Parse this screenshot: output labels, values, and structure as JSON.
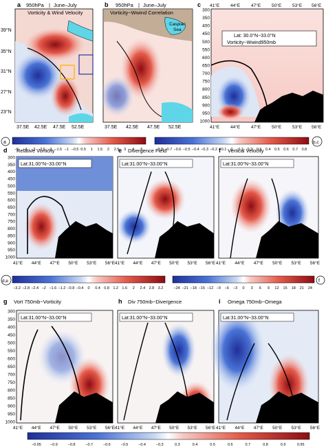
{
  "panels": {
    "a": {
      "letter": "a",
      "title_left": "950hPa",
      "title_sep": "|",
      "title_right": "June–July",
      "subtitle": "Vorticity & Wind Velocity",
      "xticks": [
        "37.5E",
        "42.5E",
        "47.5E",
        "52.5E"
      ],
      "yticks": [
        "39°N",
        "35°N",
        "31°N",
        "27°N",
        "23°N"
      ]
    },
    "b": {
      "letter": "b",
      "title_left": "950hPa",
      "title_sep": "|",
      "title_right": "June–July",
      "subtitle": "Vorticity−Wwind Correlation",
      "xticks": [
        "37.5E",
        "42.5E",
        "47.5E",
        "52.5E"
      ],
      "inset_label_1": "Caspian",
      "inset_label_2": "Sea"
    },
    "c": {
      "letter": "c",
      "box_line1": "Lat: 30.0°N−33.0°N",
      "box_line2": "Vorticity−Wwind950mb",
      "xticks": [
        "41°E",
        "44°E",
        "47°E",
        "50°E",
        "53°E",
        "56°E"
      ]
    },
    "d": {
      "letter": "d",
      "title": "Relative Vorticity",
      "box": "Lat:31.00°N−33.00°N",
      "xticks": [
        "41°E",
        "44°E",
        "47°E",
        "50°E",
        "53°E",
        "56°E"
      ]
    },
    "e": {
      "letter": "e",
      "title": "Divergence Field",
      "box": "Lat:31.00°N−33.00°N",
      "xticks": [
        "41°E",
        "44°E",
        "47°E",
        "50°E",
        "53°E",
        "56°E"
      ]
    },
    "f": {
      "letter": "f",
      "title": "Vertical Velocity",
      "box": "Lat:31.00°N−33.00°N",
      "xticks": [
        "41°E",
        "44°E",
        "47°E",
        "50°E",
        "53°E",
        "56°E"
      ]
    },
    "g": {
      "letter": "g",
      "title": "Vort 750mb−Vorticity",
      "box": "Lat:31.00°N−33.00°N",
      "xticks": [
        "41°E",
        "44°E",
        "47°E",
        "50°E",
        "53°E",
        "56°E"
      ]
    },
    "h": {
      "letter": "h",
      "title": "Div 750mb−Divergence",
      "box": "Lat:31.00°N−33.00°N",
      "xticks": [
        "41°E",
        "44°E",
        "47°E",
        "50°E",
        "53°E",
        "56°E"
      ]
    },
    "i": {
      "letter": "i",
      "title": "Omega 750mb−Omega",
      "box": "Lat:31.00°N−33.00°N",
      "xticks": [
        "41°E",
        "44°E",
        "47°E",
        "50°E",
        "53°E",
        "56°E"
      ]
    }
  },
  "pressure_levels": [
    "300",
    "350",
    "400",
    "450",
    "500",
    "550",
    "600",
    "650",
    "700",
    "750",
    "800",
    "850",
    "900",
    "950",
    "1000"
  ],
  "colorbars": {
    "a": {
      "tag": "a",
      "labels": [
        "−5",
        "−4",
        "−3",
        "−2.5",
        "−2",
        "−1.5",
        "−1",
        "−0.5",
        "0.5",
        "1",
        "1.5",
        "2",
        "2.5",
        "3",
        "4",
        "5"
      ]
    },
    "bc": {
      "tag": "b,c",
      "labels": [
        "−0.8",
        "−0.7",
        "−0.6",
        "−0.5",
        "−0.4",
        "−0.3",
        "−0.2",
        "−0.1",
        "0",
        "0.1",
        "0.2",
        "0.3",
        "0.4",
        "0.5",
        "0.6",
        "0.7",
        "0.8"
      ]
    },
    "de": {
      "tag": "d,e",
      "labels": [
        "−3.2",
        "−2.8",
        "−2.4",
        "−2",
        "−1.6",
        "−1.2",
        "−0.8",
        "−0.4",
        "0",
        "0.4",
        "0.8",
        "1.2",
        "1.6",
        "2",
        "2.4",
        "2.8",
        "3.2"
      ]
    },
    "f": {
      "tag": "f",
      "labels": [
        "−24",
        "−21",
        "−18",
        "−15",
        "−12",
        "−9",
        "−6",
        "−3",
        "0",
        "3",
        "6",
        "9",
        "12",
        "15",
        "18",
        "21",
        "24"
      ]
    },
    "ghi": {
      "labels": [
        "−0.95",
        "−0.9",
        "−0.8",
        "−0.7",
        "−0.6",
        "−0.5",
        "−0.4",
        "−0.3",
        "0.3",
        "0.4",
        "0.5",
        "0.6",
        "0.7",
        "0.8",
        "0.9",
        "0.95"
      ]
    }
  },
  "colors": {
    "neg_dark": "#1f2f9a",
    "neg_mid": "#4a73d6",
    "neg_light": "#c8d8f2",
    "white": "#ffffff",
    "pos_light": "#f6c9c4",
    "pos_mid": "#e55a4a",
    "pos_dark": "#8e0c12",
    "terrain": "#000000",
    "land": "#a08868",
    "caspian": "#5fd5e8"
  },
  "chart_data": {
    "type": "heatmap",
    "description_fields": {
      "x_range_lon": [
        41,
        56
      ],
      "y_range_hPa": [
        300,
        1000
      ],
      "map_x_range_lon": [
        37.5,
        55
      ],
      "map_y_range_lat": [
        22,
        41
      ]
    }
  }
}
